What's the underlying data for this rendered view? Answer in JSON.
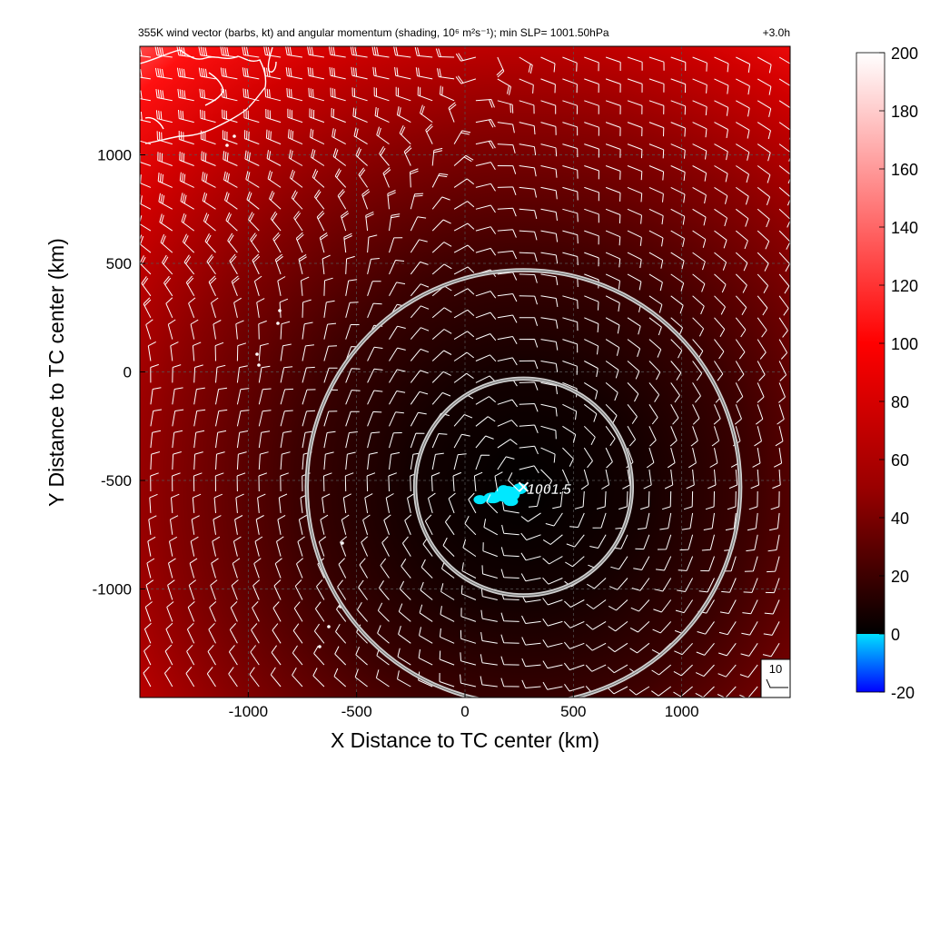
{
  "chart_data": {
    "type": "heatmap",
    "title": "355K wind vector (barbs, kt) and angular momentum (shading, 10⁶ m²s⁻¹); min SLP= 1001.50hPa",
    "forecast_time": "+3.0h",
    "xlabel": "X Distance to TC center (km)",
    "ylabel": "Y Distance to TC center (km)",
    "xlim": [
      -1500,
      1500
    ],
    "ylim": [
      -1500,
      1500
    ],
    "x_ticks": [
      -1000,
      -500,
      0,
      500,
      1000
    ],
    "y_ticks": [
      1000,
      500,
      0,
      -500,
      -1000
    ],
    "x_tick_labels": [
      "-1000",
      "-500",
      "0",
      "500",
      "1000"
    ],
    "y_tick_labels": [
      "1000",
      "500",
      "0",
      "-500",
      "-1000"
    ],
    "grid": true,
    "colorbar": {
      "ticks": [
        200,
        180,
        160,
        140,
        120,
        100,
        80,
        60,
        40,
        20,
        0,
        -20
      ],
      "tick_labels": [
        "200",
        "180",
        "160",
        "140",
        "120",
        "100",
        "80",
        "60",
        "40",
        "20",
        "0",
        "-20"
      ],
      "range": [
        -20,
        200
      ],
      "stops": [
        {
          "value": -20,
          "color": "#0000ff"
        },
        {
          "value": 0,
          "color": "#00e0ff"
        },
        {
          "value": 0.01,
          "color": "#000000"
        },
        {
          "value": 50,
          "color": "#990000"
        },
        {
          "value": 100,
          "color": "#ff0000"
        },
        {
          "value": 150,
          "color": "#ff8080"
        },
        {
          "value": 200,
          "color": "#ffffff"
        }
      ]
    },
    "center": {
      "x": 270,
      "y": -530,
      "label": "1001.5",
      "marker": "x-marker"
    },
    "radius_rings_km": [
      500,
      1000
    ],
    "barb_reference": {
      "label": "10",
      "speed_kt": 10
    },
    "shading_field": {
      "gradient_stops": [
        {
          "offset": 0,
          "color": "#000000"
        },
        {
          "offset": 0.18,
          "color": "#140000"
        },
        {
          "offset": 0.35,
          "color": "#3c0000"
        },
        {
          "offset": 0.55,
          "color": "#880000"
        },
        {
          "offset": 0.72,
          "color": "#d00000"
        },
        {
          "offset": 0.84,
          "color": "#ff1010"
        },
        {
          "offset": 0.93,
          "color": "#ff7070"
        },
        {
          "offset": 1.0,
          "color": "#ffd8d8"
        }
      ]
    },
    "wind_barbs": {
      "spacing_km": 100,
      "speed_kt_range": [
        5,
        45
      ]
    }
  }
}
